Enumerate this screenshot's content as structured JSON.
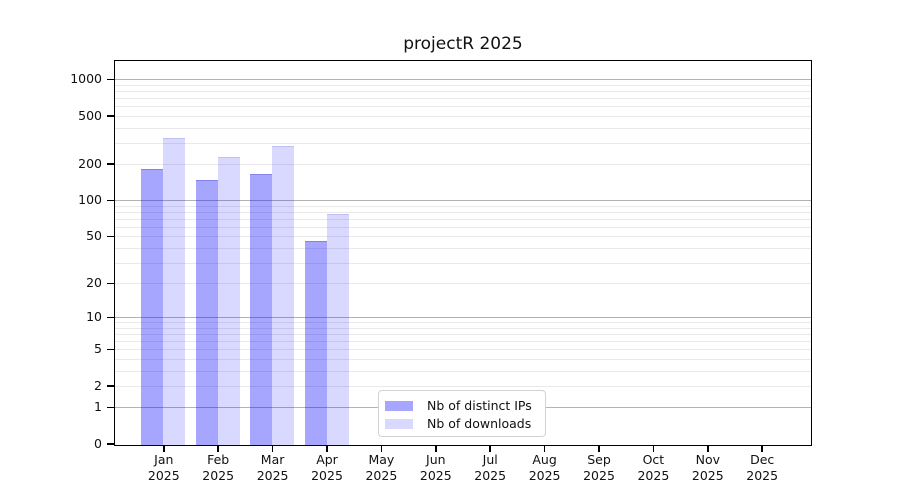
{
  "chart_data": {
    "type": "bar",
    "title": "projectR 2025",
    "categories": [
      {
        "month": "Jan",
        "year": "2025"
      },
      {
        "month": "Feb",
        "year": "2025"
      },
      {
        "month": "Mar",
        "year": "2025"
      },
      {
        "month": "Apr",
        "year": "2025"
      },
      {
        "month": "May",
        "year": "2025"
      },
      {
        "month": "Jun",
        "year": "2025"
      },
      {
        "month": "Jul",
        "year": "2025"
      },
      {
        "month": "Aug",
        "year": "2025"
      },
      {
        "month": "Sep",
        "year": "2025"
      },
      {
        "month": "Oct",
        "year": "2025"
      },
      {
        "month": "Nov",
        "year": "2025"
      },
      {
        "month": "Dec",
        "year": "2025"
      }
    ],
    "series": [
      {
        "name": "Nb of distinct IPs",
        "fill": "rgba(0,0,255,0.35)",
        "edge": "rgba(10,10,160,0.22)",
        "values": [
          187,
          149,
          169,
          47,
          0,
          0,
          0,
          0,
          0,
          0,
          0,
          0
        ]
      },
      {
        "name": "Nb of downloads",
        "fill": "rgba(0,0,255,0.15)",
        "edge": "rgba(10,10,160,0.12)",
        "values": [
          333,
          234,
          288,
          78,
          0,
          0,
          0,
          0,
          0,
          0,
          0,
          0
        ]
      }
    ],
    "y_axis": {
      "scale": "log1p",
      "max_value": 1414,
      "tick_values": [
        0,
        1,
        2,
        5,
        10,
        20,
        50,
        100,
        200,
        500,
        1000
      ],
      "major_gridlines": [
        1,
        10,
        100,
        1000
      ],
      "minor_gridlines": [
        2,
        3,
        4,
        5,
        6,
        7,
        8,
        9,
        20,
        30,
        40,
        50,
        60,
        70,
        80,
        90,
        200,
        300,
        400,
        500,
        600,
        700,
        800,
        900
      ],
      "major_grid_color": "#b3b3b3",
      "minor_grid_color": "#e9e9e9"
    },
    "legend": {
      "items": [
        "Nb of distinct IPs",
        "Nb of downloads"
      ]
    },
    "axis_color": "#000000",
    "background_color": "#ffffff"
  }
}
